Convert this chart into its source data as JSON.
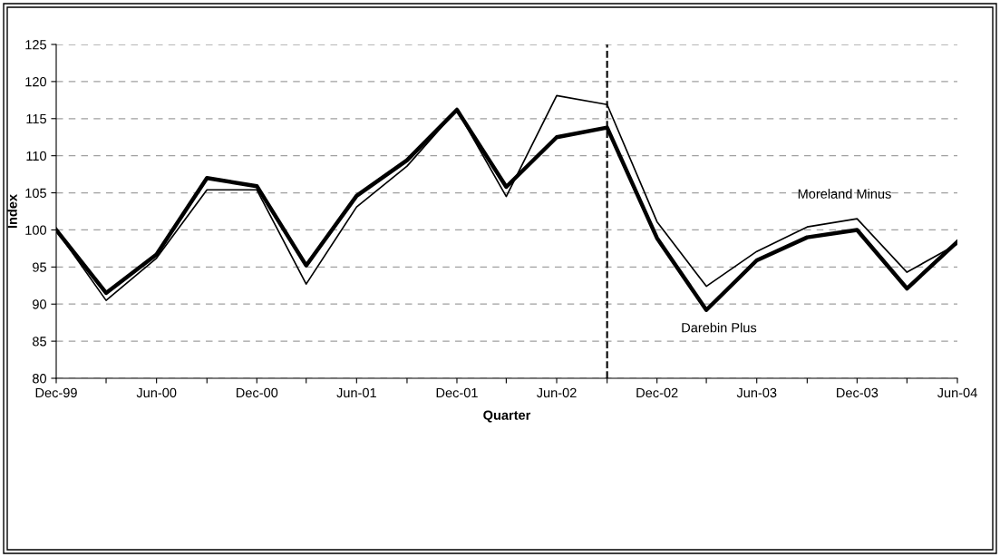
{
  "chart_data": {
    "type": "line",
    "xlabel": "Quarter",
    "ylabel": "Index",
    "x": [
      "1999-12",
      "2000-03",
      "2000-06",
      "2000-09",
      "2000-12",
      "2001-03",
      "2001-06",
      "2001-09",
      "2001-12",
      "2002-03",
      "2002-06",
      "2002-09",
      "2002-12",
      "2003-03",
      "2003-06",
      "2003-09",
      "2003-12",
      "2004-03",
      "2004-06"
    ],
    "series": [
      {
        "name": "Moreland Minus",
        "color": "#000000",
        "values": [
          100,
          90.5,
          96.2,
          105.4,
          105.4,
          92.7,
          103.1,
          108.6,
          116.2,
          104.5,
          118.1,
          116.9,
          101.1,
          92.4,
          97.1,
          100.4,
          101.5,
          94.3,
          98.1
        ]
      },
      {
        "name": "Darebin Plus",
        "color": "#000000",
        "values": [
          100,
          91.5,
          96.7,
          107,
          105.9,
          95.2,
          104.6,
          109.4,
          116.2,
          105.8,
          112.5,
          113.8,
          98.9,
          89.2,
          95.9,
          99.0,
          100.0,
          92.1,
          98.4
        ]
      }
    ],
    "xlim": [
      "1999-12",
      "2004-06"
    ],
    "xticks": [
      {
        "value": "1999-12",
        "label": "Dec-99"
      },
      {
        "value": "2000-03",
        "label": null
      },
      {
        "value": "2000-06",
        "label": "Jun-00"
      },
      {
        "value": "2000-09",
        "label": null
      },
      {
        "value": "2000-12",
        "label": "Dec-00"
      },
      {
        "value": "2001-03",
        "label": null
      },
      {
        "value": "2001-06",
        "label": "Jun-01"
      },
      {
        "value": "2001-09",
        "label": null
      },
      {
        "value": "2001-12",
        "label": "Dec-01"
      },
      {
        "value": "2002-03",
        "label": null
      },
      {
        "value": "2002-06",
        "label": "Jun-02"
      },
      {
        "value": "2002-09",
        "label": null
      },
      {
        "value": "2002-12",
        "label": "Dec-02"
      },
      {
        "value": "2003-03",
        "label": null
      },
      {
        "value": "2003-06",
        "label": "Jun-03"
      },
      {
        "value": "2003-09",
        "label": null
      },
      {
        "value": "2003-12",
        "label": "Dec-03"
      },
      {
        "value": "2004-03",
        "label": null
      },
      {
        "value": "2004-06",
        "label": "Jun-04"
      }
    ],
    "ylim": [
      80,
      125
    ],
    "yticks": [
      80,
      85,
      90,
      95,
      100,
      105,
      110,
      115,
      120,
      125
    ],
    "ref_lines": [
      {
        "axis": "x",
        "value": "2002-09",
        "color": "#000000",
        "line_style": "dashed"
      }
    ],
    "grid": "y",
    "legend": false,
    "marker": "none",
    "line_style": "solid"
  }
}
